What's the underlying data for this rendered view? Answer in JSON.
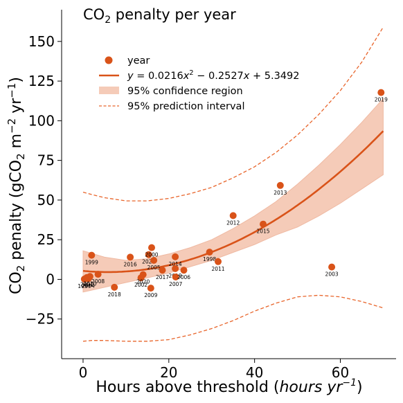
{
  "chart_data": {
    "type": "scatter",
    "title": "CO₂ penalty per year",
    "xlabel": "Hours above threshold",
    "xlabel_unit": "hours yr⁻¹",
    "ylabel": "CO₂ penalty (gCO₂ m⁻² yr⁻¹)",
    "xlim": [
      -5,
      73
    ],
    "ylim": [
      -50,
      170
    ],
    "xticks": [
      0,
      20,
      40,
      60
    ],
    "yticks": [
      -25,
      0,
      25,
      50,
      75,
      100,
      125,
      150
    ],
    "colors": {
      "points": "#d95319",
      "fit": "#d95319",
      "band": "#f5cbb8",
      "prediction": "#e8642a"
    },
    "legend": {
      "placement": "upper-left",
      "entries": [
        "year",
        "y = 0.0216x² − 0.2527x + 5.3492",
        "95% confidence region",
        "95% prediction interval"
      ]
    },
    "fit": {
      "a": 0.0216,
      "b": -0.2527,
      "c": 5.3492,
      "x_range": [
        0,
        70
      ]
    },
    "points": [
      {
        "year": "1997",
        "x": 0.3,
        "y": 0.2
      },
      {
        "year": "2001",
        "x": 0.9,
        "y": 1.2
      },
      {
        "year": "2004",
        "x": 1.2,
        "y": 0.4
      },
      {
        "year": "2010",
        "x": 1.6,
        "y": 1.8
      },
      {
        "year": "1999",
        "x": 2.0,
        "y": 15.2
      },
      {
        "year": "2008",
        "x": 3.5,
        "y": 3.2
      },
      {
        "year": "2018",
        "x": 7.3,
        "y": -5.0
      },
      {
        "year": "2016",
        "x": 11.0,
        "y": 14.0
      },
      {
        "year": "2002",
        "x": 13.5,
        "y": 1.0
      },
      {
        "year": "2020",
        "x": 14.0,
        "y": 3.0
      },
      {
        "year": "2021",
        "x": 15.3,
        "y": 15.6
      },
      {
        "year": "2000",
        "x": 16.0,
        "y": 20.0
      },
      {
        "year": "2005",
        "x": 16.5,
        "y": 12.0
      },
      {
        "year": "2009",
        "x": 15.8,
        "y": -5.5
      },
      {
        "year": "2017",
        "x": 18.5,
        "y": 5.8
      },
      {
        "year": "2014",
        "x": 21.5,
        "y": 14.2
      },
      {
        "year": "2019",
        "x": 21.5,
        "y": 6.8
      },
      {
        "year": "2007",
        "x": 21.6,
        "y": 1.5
      },
      {
        "year": "2006",
        "x": 23.5,
        "y": 5.8
      },
      {
        "year": "1998",
        "x": 29.5,
        "y": 17.2
      },
      {
        "year": "2011",
        "x": 31.5,
        "y": 11.2
      },
      {
        "year": "2012",
        "x": 35.0,
        "y": 40.2
      },
      {
        "year": "2015",
        "x": 42.0,
        "y": 34.8
      },
      {
        "year": "2013",
        "x": 46.0,
        "y": 59.2
      },
      {
        "year": "2003",
        "x": 58.0,
        "y": 7.8
      },
      {
        "year": "2019",
        "x": 69.5,
        "y": 117.8
      }
    ],
    "confidence_band": {
      "x": [
        0,
        5,
        10,
        15,
        20,
        25,
        30,
        35,
        40,
        45,
        50,
        55,
        60,
        65,
        70
      ],
      "upper": [
        18,
        14,
        12,
        13,
        16,
        20,
        25,
        32,
        40,
        49,
        60,
        72,
        85,
        99,
        114
      ],
      "lower": [
        -8,
        -5,
        -2,
        1,
        4,
        8,
        12,
        17,
        22,
        28,
        33,
        40,
        48,
        57,
        66
      ]
    },
    "prediction_interval": {
      "x": [
        0,
        2,
        5,
        10,
        15,
        20,
        25,
        30,
        35,
        40,
        45,
        50,
        55,
        60,
        65,
        70
      ],
      "upper": [
        55,
        53.5,
        51.5,
        49.5,
        49.5,
        51,
        54,
        58,
        64,
        71,
        80,
        91,
        104,
        119,
        137,
        159
      ],
      "lower": [
        -39,
        -38.5,
        -38.5,
        -39,
        -39,
        -38,
        -35,
        -31,
        -26,
        -20,
        -15,
        -11,
        -10,
        -11,
        -14,
        -18
      ]
    }
  }
}
